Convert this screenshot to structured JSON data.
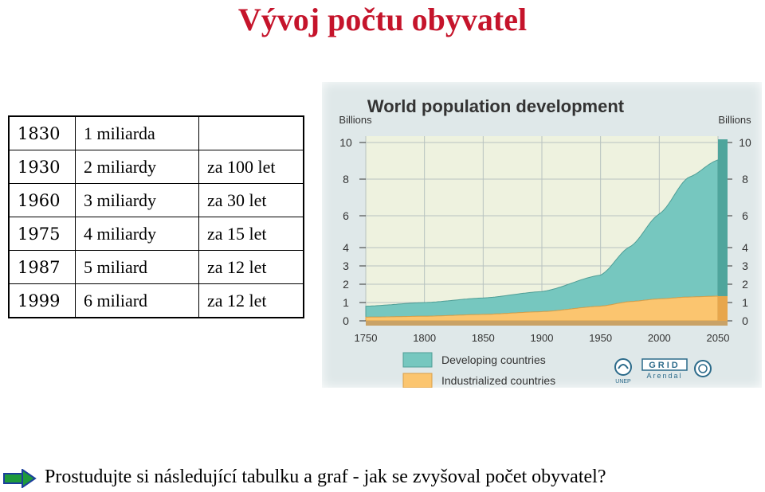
{
  "slide": {
    "title": "Vývoj počtu obyvatel",
    "bottom_text": "Prostudujte si následující tabulku a graf - jak se zvyšoval počet obyvatel?"
  },
  "table": {
    "rows": [
      [
        "1830",
        "1 miliarda",
        ""
      ],
      [
        "1930",
        "2 miliardy",
        "za 100 let"
      ],
      [
        "1960",
        "3 miliardy",
        "za 30 let"
      ],
      [
        "1975",
        "4 miliardy",
        "za 15 let"
      ],
      [
        "1987",
        "5 miliard",
        "za 12 let"
      ],
      [
        "1999",
        "6 miliard",
        "za 12 let"
      ]
    ]
  },
  "icons": {
    "bullet": "arrow-right-icon"
  },
  "chart_data": {
    "type": "area",
    "title": "World population development",
    "ylabel_left": "Billions",
    "ylabel_right": "Billions",
    "x": [
      1750,
      1800,
      1850,
      1900,
      1950,
      1975,
      2000,
      2025,
      2050
    ],
    "xticks": [
      "1750",
      "1800",
      "1850",
      "1900",
      "1950",
      "2000",
      "2050"
    ],
    "yticks_left": [
      "0",
      "1",
      "2",
      "3",
      "4",
      "6",
      "8",
      "10"
    ],
    "yticks_right": [
      "0",
      "1",
      "2",
      "3",
      "4",
      "6",
      "8",
      "10"
    ],
    "ylim": [
      0,
      10
    ],
    "stacked": true,
    "series": [
      {
        "name": "Industrialized countries",
        "color": "#fbc56f",
        "values": [
          0.2,
          0.25,
          0.35,
          0.5,
          0.8,
          1.05,
          1.2,
          1.3,
          1.35
        ]
      },
      {
        "name": "Developing countries",
        "color": "#76c7bf",
        "values": [
          0.6,
          0.75,
          0.9,
          1.1,
          1.7,
          3.0,
          4.9,
          6.8,
          7.7
        ]
      }
    ],
    "legend": "bottom",
    "logos": [
      "UNEP",
      "GRID Arendal",
      "UN"
    ]
  }
}
